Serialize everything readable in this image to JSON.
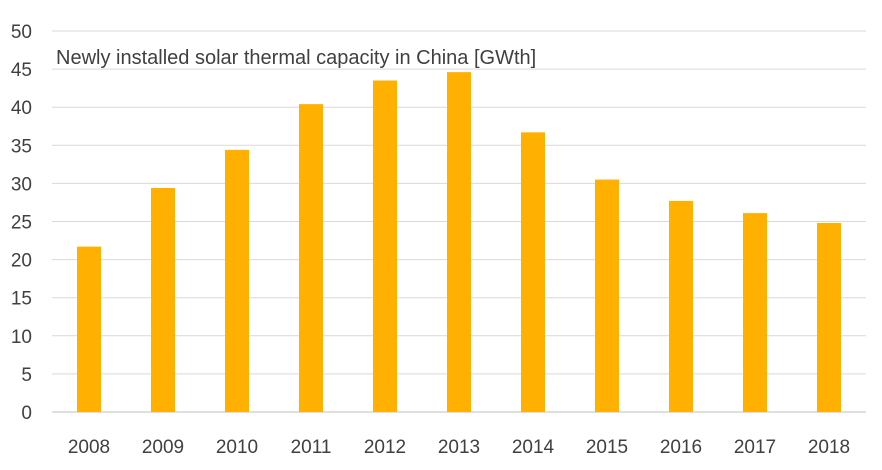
{
  "chart_data": {
    "type": "bar",
    "title": "Newly installed solar thermal capacity in China [GWth]",
    "xlabel": "",
    "ylabel": "",
    "categories": [
      "2008",
      "2009",
      "2010",
      "2011",
      "2012",
      "2013",
      "2014",
      "2015",
      "2016",
      "2017",
      "2018"
    ],
    "values": [
      21.7,
      29.4,
      34.4,
      40.4,
      43.5,
      44.6,
      36.7,
      30.5,
      27.7,
      26.1,
      24.8
    ],
    "ylim": [
      0,
      50
    ],
    "yticks": [
      "0",
      "5",
      "10",
      "15",
      "20",
      "25",
      "30",
      "35",
      "40",
      "45",
      "50"
    ],
    "grid": true,
    "legend": "none",
    "bar_color": "#FFB000"
  }
}
